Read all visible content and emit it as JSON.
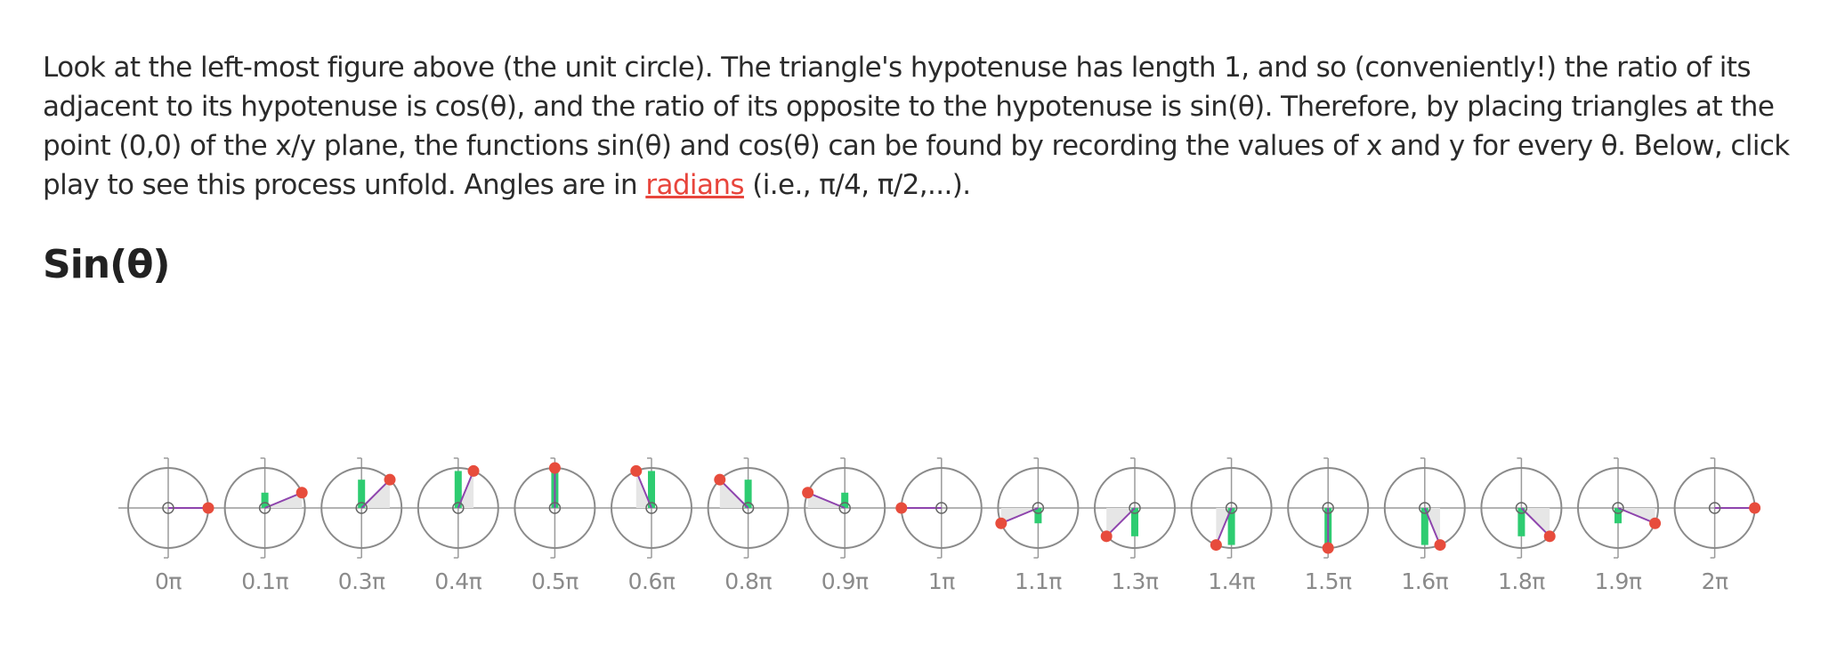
{
  "paragraph": {
    "before_link": "Look at the left-most figure above (the unit circle). The triangle's hypotenuse has length 1, and so (conveniently!) the ratio of its adjacent to its hypotenuse is cos(θ), and the ratio of its opposite to the hypotenuse is sin(θ). Therefore, by placing triangles at the point (0,0) of the x/y plane, the functions sin(θ) and cos(θ) can be found by recording the values of x and y for every θ. Below, click play to see this process unfold. Angles are in ",
    "link_text": "radians",
    "after_link": " (i.e., π/4, π/2,...)."
  },
  "section_title": "Sin(θ)",
  "diagram": {
    "angles": [
      {
        "label": "0π",
        "value": 0
      },
      {
        "label": "0.1π",
        "value": 0.125
      },
      {
        "label": "0.3π",
        "value": 0.25
      },
      {
        "label": "0.4π",
        "value": 0.375
      },
      {
        "label": "0.5π",
        "value": 0.5
      },
      {
        "label": "0.6π",
        "value": 0.625
      },
      {
        "label": "0.8π",
        "value": 0.75
      },
      {
        "label": "0.9π",
        "value": 0.875
      },
      {
        "label": "1π",
        "value": 1
      },
      {
        "label": "1.1π",
        "value": 1.125
      },
      {
        "label": "1.3π",
        "value": 1.25
      },
      {
        "label": "1.4π",
        "value": 1.375
      },
      {
        "label": "1.5π",
        "value": 1.5
      },
      {
        "label": "1.6π",
        "value": 1.625
      },
      {
        "label": "1.8π",
        "value": 1.75
      },
      {
        "label": "1.9π",
        "value": 1.875
      },
      {
        "label": "2π",
        "value": 2
      }
    ],
    "colors": {
      "circle": "#8a8a8a",
      "axis": "#9a9a9a",
      "hypotenuse": "#8e44ad",
      "sine_bar": "#2ecc71",
      "triangle_fill": "#e6e6e6",
      "point": "#e74c3c",
      "link": "#e8453c"
    }
  }
}
